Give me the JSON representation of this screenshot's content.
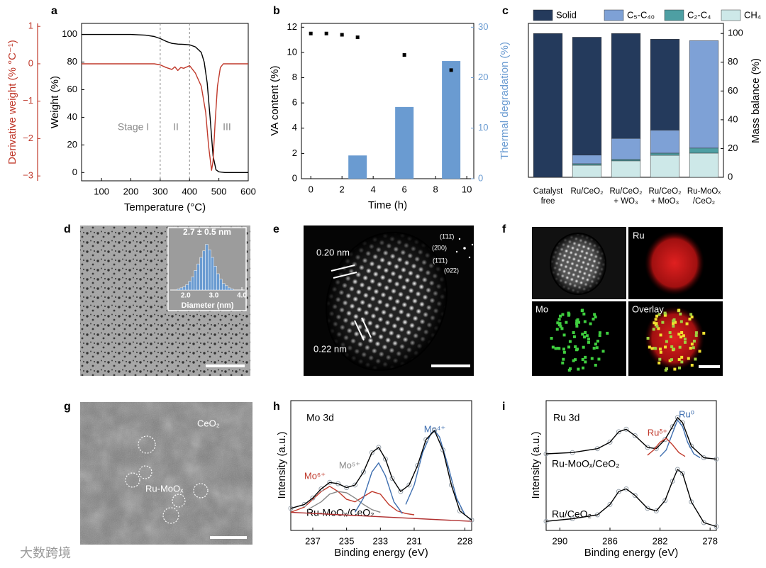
{
  "chart_data": [
    {
      "panel": "a",
      "type": "line",
      "x_label": "Temperature (°C)",
      "y_label": "Weight (%)",
      "y2_label": "Derivative weight (% °C⁻¹)",
      "xlim": [
        32,
        600
      ],
      "xticks": [
        100,
        200,
        300,
        400,
        500,
        600
      ],
      "ylim": [
        -6,
        108
      ],
      "yticks": [
        0,
        20,
        40,
        60,
        80,
        100
      ],
      "y2lim": [
        -3.13,
        1.08
      ],
      "y2ticks": [
        1,
        0,
        {
          "value": -1,
          "label": "−1"
        },
        {
          "value": -2,
          "label": "−2"
        },
        {
          "value": -3,
          "label": "−3"
        }
      ],
      "y2_color": "#c0392b",
      "vlines": [
        300,
        400
      ],
      "annotations": [
        "Stage I",
        "II",
        "III"
      ],
      "series": [
        {
          "color": "#000000",
          "x": [
            32,
            100,
            200,
            250,
            280,
            300,
            320,
            340,
            360,
            380,
            400,
            420,
            440,
            450,
            460,
            470,
            480,
            490,
            500,
            520,
            600
          ],
          "values": [
            100,
            100,
            100,
            99.5,
            98.5,
            97,
            95,
            93.5,
            93,
            92.8,
            92.5,
            91,
            87,
            80,
            65,
            40,
            12,
            2,
            0.5,
            0,
            0
          ]
        },
        {
          "color": "#c0392b",
          "axis": "y2",
          "x": [
            32,
            100,
            200,
            280,
            300,
            320,
            340,
            350,
            360,
            370,
            380,
            400,
            420,
            440,
            455,
            465,
            475,
            480,
            487,
            495,
            505,
            515,
            600
          ],
          "values": [
            0,
            0,
            0,
            0,
            -0.03,
            -0.1,
            -0.15,
            -0.08,
            -0.18,
            -0.1,
            -0.12,
            -0.05,
            -0.25,
            -0.6,
            -1.3,
            -2.2,
            -2.85,
            -2.6,
            -1.6,
            -0.6,
            -0.1,
            0,
            0
          ]
        }
      ]
    },
    {
      "panel": "b",
      "type": "combo",
      "x_label": "Time (h)",
      "y_label": "VA content (%)",
      "y2_label": "Thermal degradation (%)",
      "y2_color": "#6a9bd1",
      "xlim": [
        -0.6,
        10.45
      ],
      "xticks": [
        0,
        2,
        4,
        6,
        8,
        10
      ],
      "ylim": [
        0,
        12.3
      ],
      "yticks": [
        0,
        2,
        4,
        6,
        8,
        10,
        12
      ],
      "y2lim": [
        0,
        30.75
      ],
      "y2ticks": [
        0,
        10,
        20,
        30
      ],
      "series": [
        {
          "type": "bar",
          "axis": "y2",
          "color": "#6a9bd1",
          "x": [
            3,
            6,
            9
          ],
          "values": [
            4.6,
            14.2,
            23.3
          ]
        },
        {
          "type": "scatter",
          "color": "#000000",
          "x": [
            0,
            1,
            2,
            3,
            6,
            9
          ],
          "values": [
            11.5,
            11.5,
            11.4,
            11.2,
            9.8,
            8.6
          ]
        }
      ]
    },
    {
      "panel": "c",
      "type": "stacked_bar",
      "y_label": "Mass balance (%)",
      "y_axis_side": "right",
      "legend": "top",
      "ylim": [
        0,
        107
      ],
      "yticks": [
        0,
        20,
        40,
        60,
        80,
        100
      ],
      "categories": [
        "Catalyst\nfree",
        "Ru/CeO₂",
        "Ru/CeO₂\n+ WO₃",
        "Ru/CeO₂\n+ MoO₃",
        "Ru-MoOₓ\n/CeO₂"
      ],
      "series": [
        {
          "name": "CH₄",
          "color": "#cde8e8",
          "values": [
            0,
            8.4,
            11.4,
            15.3,
            16.8
          ]
        },
        {
          "name": "C₂-C₄",
          "color": "#4e9fa3",
          "values": [
            0,
            1,
            1,
            1.5,
            3.5
          ]
        },
        {
          "name": "C₅-C₄₀",
          "color": "#7ea1d6",
          "values": [
            0,
            6,
            14.6,
            16,
            74.7
          ]
        },
        {
          "name": "Solid",
          "color": "#243a5c",
          "values": [
            100,
            82,
            73,
            63.2,
            0
          ]
        }
      ]
    },
    {
      "type": "histogram",
      "annotations": [
        "2.7 ± 0.5 nm"
      ],
      "x_label": "Diameter (nm)",
      "color": "#6a9bd1",
      "xlim": [
        1.45,
        4.1
      ],
      "xticks": [
        {
          "value": 2,
          "label": "2.0"
        },
        {
          "value": 3,
          "label": "3.0"
        },
        {
          "value": 4,
          "label": "4.0"
        }
      ],
      "ylim": [
        0,
        45
      ],
      "bins": [
        1.7,
        1.8,
        1.9,
        2.0,
        2.1,
        2.2,
        2.3,
        2.4,
        2.5,
        2.6,
        2.7,
        2.8,
        2.9,
        3.0,
        3.1,
        3.2,
        3.3,
        3.4,
        3.5,
        3.6,
        3.7
      ],
      "values": [
        1,
        2,
        3,
        5,
        8,
        12,
        18,
        24,
        30,
        36,
        42,
        37,
        30,
        22,
        15,
        10,
        6,
        4,
        2,
        1
      ]
    },
    {
      "panel": "h",
      "type": "line",
      "x_label": "Binding energy (eV)",
      "y_label": "Intensity (a.u.)",
      "xlim": [
        238.3,
        227.6
      ],
      "xticks": [
        237,
        235,
        233,
        231,
        228
      ],
      "ylim": [
        0,
        1
      ],
      "annotations": [
        "Mo 3d",
        "Ru-MoOₓ/CeO₂"
      ],
      "series": [
        {
          "color": "#b03030",
          "x": [
            238.3,
            227.6
          ],
          "values": [
            0.14,
            0.07
          ]
        },
        {
          "name": "Mo⁶⁺",
          "color": "#c0392b",
          "x": [
            238.3,
            237.5,
            236.5,
            236,
            235.5,
            235,
            234.5,
            234,
            233.5,
            233,
            232.5,
            232,
            231.5,
            231
          ],
          "values": [
            0.14,
            0.18,
            0.3,
            0.34,
            0.3,
            0.24,
            0.22,
            0.26,
            0.3,
            0.28,
            0.2,
            0.15,
            0.13,
            0.12
          ]
        },
        {
          "name": "Mo⁵⁺",
          "color": "#888888",
          "x": [
            237.3,
            236.5,
            236,
            235.5,
            235,
            234.5,
            234,
            233.5,
            233
          ],
          "values": [
            0.16,
            0.22,
            0.28,
            0.3,
            0.29,
            0.25,
            0.2,
            0.16,
            0.14
          ]
        },
        {
          "name": "Mo⁴⁺",
          "color": "#3f6fb0",
          "x": [
            234.5,
            234,
            233.5,
            233.1,
            232.7,
            232.2,
            231.7,
            231.6,
            231.5,
            231,
            230.5,
            230,
            229.8,
            229.5,
            229,
            228.5,
            228,
            227.6
          ],
          "values": [
            0.14,
            0.25,
            0.45,
            0.52,
            0.42,
            0.22,
            0.13,
            null,
            0.2,
            0.35,
            0.6,
            0.75,
            0.77,
            0.72,
            0.5,
            0.25,
            0.12,
            0.08
          ]
        },
        {
          "color": "#000000",
          "marker": "circle",
          "marker_color": "#9aa4ae",
          "x": [
            238.3,
            237.5,
            237,
            236.5,
            236,
            235.5,
            235,
            234.5,
            234,
            233.5,
            233.1,
            232.7,
            232.3,
            231.8,
            231.3,
            230.8,
            230.3,
            229.8,
            229.3,
            228.8,
            228.3,
            227.6
          ],
          "values": [
            0.17,
            0.2,
            0.25,
            0.32,
            0.37,
            0.36,
            0.33,
            0.35,
            0.45,
            0.6,
            0.64,
            0.55,
            0.4,
            0.3,
            0.35,
            0.5,
            0.7,
            0.77,
            0.62,
            0.35,
            0.15,
            0.08
          ]
        }
      ]
    },
    {
      "panel": "i",
      "type": "line",
      "x_label": "Binding energy (eV)",
      "y_label": "Intensity (a.u.)",
      "xlim": [
        291.1,
        277.5
      ],
      "xticks": [
        290,
        286,
        282,
        278
      ],
      "ylim": [
        0,
        1
      ],
      "annotations": [
        "Ru 3d",
        "Ru-MoOₓ/CeO₂",
        "Ru/CeO₂"
      ],
      "series": [
        {
          "color": "#000000",
          "marker": "circle",
          "marker_color": "#9aa4ae",
          "x": [
            291.1,
            289,
            287,
            286,
            285.3,
            284.7,
            284,
            283,
            282.3,
            281.6,
            281,
            280.6,
            280.2,
            279.5,
            278.5,
            277.5
          ],
          "values": [
            0.59,
            0.6,
            0.63,
            0.68,
            0.76,
            0.78,
            0.73,
            0.64,
            0.63,
            0.7,
            0.8,
            0.87,
            0.83,
            0.65,
            0.56,
            0.55
          ]
        },
        {
          "color": "#000000",
          "marker": "circle",
          "marker_color": "#9aa4ae",
          "x": [
            291.1,
            289,
            287,
            286,
            285.3,
            284.7,
            284,
            283,
            282.3,
            281.6,
            281,
            280.6,
            280.2,
            279.5,
            278.5,
            277.5
          ],
          "values": [
            0.07,
            0.09,
            0.12,
            0.2,
            0.3,
            0.32,
            0.27,
            0.17,
            0.15,
            0.23,
            0.38,
            0.47,
            0.44,
            0.22,
            0.06,
            0.03
          ]
        },
        {
          "name": "Ru⁰",
          "color": "#3f6fb0",
          "x": [
            282,
            281.5,
            281,
            280.6,
            280.2,
            279.8,
            279.3,
            278.8
          ],
          "values": [
            0.57,
            0.62,
            0.75,
            0.85,
            0.8,
            0.68,
            0.59,
            0.56
          ]
        },
        {
          "name": "Ruᵟ⁺",
          "color": "#c0392b",
          "x": [
            283,
            282.5,
            282,
            281.5,
            281,
            280.5,
            280
          ],
          "values": [
            0.58,
            0.62,
            0.68,
            0.71,
            0.66,
            0.6,
            0.57
          ]
        }
      ]
    }
  ],
  "images": [
    {
      "panel": "d"
    },
    {
      "panel": "e",
      "labels": [
        "0.20 nm",
        "0.22 nm"
      ],
      "fft_labels": [
        "(1̄11̄)",
        "(2̄00)",
        "(1̄1̄1)",
        "(02̄2)"
      ]
    },
    {
      "panel": "f",
      "labels": [
        "Ru",
        "Mo",
        "Overlay"
      ]
    },
    {
      "panel": "g",
      "labels": [
        "CeO₂",
        "Ru-MoOₓ"
      ]
    }
  ],
  "watermark": "大数跨境"
}
